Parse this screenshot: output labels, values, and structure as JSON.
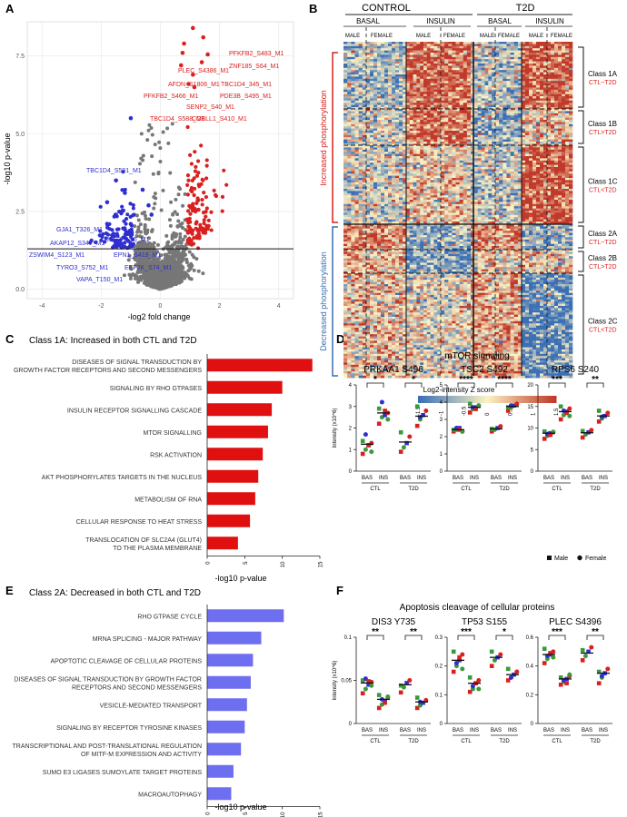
{
  "panels": {
    "a": "A",
    "b": "B",
    "c": "C",
    "d": "D",
    "e": "E",
    "f": "F"
  },
  "colors": {
    "red": "#d9201f",
    "blue": "#2f2fd0",
    "grey": "#777777",
    "bar_red": "#e01010",
    "bar_blue": "#6e6ef0",
    "green": "#3a9a3a",
    "heat_low": "#3b6fb6",
    "heat_mid": "#fbf3c4",
    "heat_high": "#c0392b"
  },
  "chart_data": [
    {
      "id": "A",
      "type": "scatter",
      "title": "",
      "xlabel": "-log2 fold change",
      "ylabel": "-log10 p-value",
      "xlim": [
        -4.5,
        4.5
      ],
      "ylim": [
        -0.3,
        8.6
      ],
      "xticks": [
        "-4",
        "-2",
        "0",
        "2",
        "4"
      ],
      "yticks": [
        "0.0",
        "2.5",
        "5.0",
        "7.5"
      ],
      "threshold_y": 1.3,
      "labels_red": [
        {
          "text": "PFKFB2_S483_M1",
          "x": 1.1,
          "y": 8.4
        },
        {
          "text": "PLEC_S4386_M1",
          "x": 0.8,
          "y": 7.9
        },
        {
          "text": "ZNF185_S64_M1",
          "x": 1.45,
          "y": 8.1
        },
        {
          "text": "AFDN_S1806_M1",
          "x": 0.75,
          "y": 7.6
        },
        {
          "text": "TBC1D4_345_M1",
          "x": 1.6,
          "y": 7.55
        },
        {
          "text": "PFKFB2_S466_M1",
          "x": 0.7,
          "y": 7.2
        },
        {
          "text": "PDE3B_S495_M1",
          "x": 1.4,
          "y": 7.3
        },
        {
          "text": "SENP2_S40_M1",
          "x": 1.1,
          "y": 6.9
        },
        {
          "text": "TBC1D4_S588_M1",
          "x": 0.95,
          "y": 6.6
        },
        {
          "text": "COBLL1_S410_M1",
          "x": 1.15,
          "y": 6.5
        }
      ],
      "labels_blue": [
        {
          "text": "TBC1D4_S591_M1",
          "x": -1.0,
          "y": 5.5
        },
        {
          "text": "GJA1_T326_M1",
          "x": -1.5,
          "y": 3.5
        },
        {
          "text": "AKAP12_S347_M1",
          "x": -1.2,
          "y": 3.1
        },
        {
          "text": "UBE2H_S5_M1",
          "x": -0.6,
          "y": 3.2
        },
        {
          "text": "ZSWIM4_S123_M1",
          "x": -1.8,
          "y": 2.8
        },
        {
          "text": "TYRO3_S752_M1",
          "x": -1.3,
          "y": 2.5
        },
        {
          "text": "EPN1_S419_M1",
          "x": -0.4,
          "y": 2.7
        },
        {
          "text": "EEF2K_S74_M1",
          "x": -0.3,
          "y": 2.4
        },
        {
          "text": "VAPA_T150_M1",
          "x": -1.0,
          "y": 2.1
        }
      ]
    },
    {
      "id": "B",
      "type": "heatmap",
      "top_groups": [
        "CONTROL",
        "T2D"
      ],
      "sub_groups": [
        "BASAL",
        "INSULIN",
        "BASAL",
        "INSULIN"
      ],
      "sexes": [
        "MALE",
        "FEMALE",
        "MALE",
        "FEMALE",
        "MALE",
        "FEMALE",
        "MALE",
        "FEMALE"
      ],
      "side_labels": [
        "Increased phosphorylation",
        "Decreased phosphorylation"
      ],
      "classes": [
        {
          "name": "Class 1A",
          "rel": "CTL~T2D"
        },
        {
          "name": "Class 1B",
          "rel": "CTL>T2D"
        },
        {
          "name": "Class 1C",
          "rel": "CTL<T2D"
        },
        {
          "name": "Class 2A",
          "rel": "CTL~T2D"
        },
        {
          "name": "Class 2B",
          "rel": "CTL>T2D"
        },
        {
          "name": "Class 2C",
          "rel": "CTL<T2D"
        }
      ],
      "colorbar_label": "Log2-intensity Z score",
      "colorbar_ticks": [
        "-1.5",
        "-1",
        "-0.5",
        "0",
        "0.5",
        "1",
        "1.5"
      ]
    },
    {
      "id": "C",
      "type": "bar",
      "title": "Class 1A: Increased in both CTL and T2D",
      "xlabel": "-log10 p-value",
      "xlim": [
        0,
        15
      ],
      "xticks": [
        "0",
        "5",
        "10",
        "15"
      ],
      "categories": [
        "DISEASES OF SIGNAL TRANSDUCTION BY|GROWTH FACTOR RECEPTORS AND SECOND MESSENGERS",
        "SIGNALING BY RHO GTPASES",
        "INSULIN RECEPTOR SIGNALLING CASCADE",
        "MTOR SIGNALLING",
        "RSK ACTIVATION",
        "AKT PHOSPHORYLATES TARGETS IN THE NUCLEUS",
        "METABOLISM OF RNA",
        "CELLULAR RESPONSE TO HEAT STRESS",
        "TRANSLOCATION OF SLC2A4 (GLUT4)|TO THE PLASMA MEMBRANE"
      ],
      "values": [
        14.0,
        10.0,
        8.6,
        8.1,
        7.4,
        6.8,
        6.4,
        5.7,
        4.1
      ]
    },
    {
      "id": "E",
      "type": "bar",
      "title": "Class 2A: Decreased in both CTL and T2D",
      "xlabel": "-log10 p-value",
      "xlim": [
        0,
        15
      ],
      "xticks": [
        "0",
        "5",
        "10",
        "15"
      ],
      "categories": [
        "RHO GTPASE CYCLE",
        "MRNA SPLICING - MAJOR PATHWAY",
        "APOPTOTIC CLEAVAGE OF CELLULAR PROTEINS",
        "DISEASES OF SIGNAL TRANSDUCTION BY GROWTH FACTOR|RECEPTORS AND SECOND MESSENGERS",
        "VESICLE-MEDIATED TRANSPORT",
        "SIGNALING BY RECEPTOR TYROSINE KINASES",
        "TRANSCRIPTIONAL AND POST-TRANSLATIONAL REGULATION|OF MITF-M EXPRESSION AND ACTIVITY",
        "SUMO E3 LIGASES SUMOYLATE TARGET PROTEINS",
        "MACROAUTOPHAGY"
      ],
      "values": [
        10.2,
        7.2,
        6.1,
        5.8,
        5.3,
        5.0,
        4.5,
        3.5,
        3.2
      ]
    },
    {
      "id": "D",
      "type": "scatter",
      "title": "mTOR signaling",
      "ylabel": "Intensity (x10^6)",
      "legend": [
        "Male",
        "Female"
      ],
      "subplots": [
        {
          "name": "PRKAA1 S496",
          "ylim": [
            0,
            4
          ],
          "yticks": [
            "0",
            "1",
            "2",
            "3",
            "4"
          ],
          "groups": [
            "BAS",
            "INS",
            "BAS",
            "INS"
          ],
          "cohorts": [
            "CTL",
            "T2D"
          ],
          "means": [
            1.25,
            2.7,
            1.35,
            2.55
          ],
          "sig": [
            "*",
            "*"
          ],
          "points": [
            [
              0.8,
              1.0,
              1.2,
              1.3,
              1.4,
              1.7,
              1.2,
              0.9
            ],
            [
              2.2,
              2.5,
              2.6,
              2.7,
              2.9,
              3.2,
              2.8,
              2.4
            ],
            [
              0.9,
              1.1,
              1.3,
              1.6,
              1.8
            ],
            [
              2.1,
              2.4,
              2.6,
              2.8,
              3.0,
              2.5
            ]
          ]
        },
        {
          "name": "TSC2 S492",
          "ylim": [
            0,
            5
          ],
          "yticks": [
            "0",
            "1",
            "2",
            "3",
            "4",
            "5"
          ],
          "groups": [
            "BAS",
            "INS",
            "BAS",
            "INS"
          ],
          "cohorts": [
            "CTL",
            "T2D"
          ],
          "means": [
            2.4,
            3.7,
            2.45,
            3.75
          ],
          "sig": [
            "****",
            "****"
          ],
          "points": [
            [
              2.3,
              2.4,
              2.5,
              2.3,
              2.4,
              2.5,
              2.4,
              2.3
            ],
            [
              3.4,
              3.6,
              3.7,
              3.8,
              3.9,
              3.7,
              3.6,
              3.8
            ],
            [
              2.3,
              2.4,
              2.5,
              2.6,
              2.45
            ],
            [
              3.5,
              3.7,
              3.8,
              3.9,
              3.7,
              3.8
            ]
          ]
        },
        {
          "name": "RPS6 S240",
          "ylim": [
            0,
            20
          ],
          "yticks": [
            "0",
            "5",
            "10",
            "15",
            "20"
          ],
          "groups": [
            "BAS",
            "INS",
            "BAS",
            "INS"
          ],
          "cohorts": [
            "CTL",
            "T2D"
          ],
          "means": [
            8.8,
            13.8,
            8.9,
            12.8
          ],
          "sig": [
            "***",
            "**"
          ],
          "points": [
            [
              7.5,
              8.2,
              8.8,
              9.0,
              9.2,
              8.6,
              8.4,
              9.1
            ],
            [
              12.0,
              13.0,
              13.8,
              14.5,
              15.0,
              14.0,
              13.5,
              12.8
            ],
            [
              7.8,
              8.5,
              9.0,
              9.5,
              9.3
            ],
            [
              11.5,
              12.2,
              12.8,
              13.5,
              14.0,
              12.6
            ]
          ]
        }
      ]
    },
    {
      "id": "F",
      "type": "scatter",
      "title": "Apoptosis cleavage of cellular proteins",
      "ylabel": "Intensity (x10^6)",
      "subplots": [
        {
          "name": "DIS3 Y735",
          "ylim": [
            0,
            0.1
          ],
          "yticks": [
            "0",
            "0.05",
            "0.1"
          ],
          "groups": [
            "BAS",
            "INS",
            "BAS",
            "INS"
          ],
          "cohorts": [
            "CTL",
            "T2D"
          ],
          "means": [
            0.047,
            0.028,
            0.045,
            0.025
          ],
          "sig": [
            "**",
            "**"
          ],
          "points": [
            [
              0.035,
              0.04,
              0.045,
              0.048,
              0.05,
              0.052,
              0.049,
              0.044
            ],
            [
              0.018,
              0.022,
              0.026,
              0.03,
              0.033,
              0.028,
              0.024,
              0.031
            ],
            [
              0.036,
              0.042,
              0.047,
              0.05,
              0.044
            ],
            [
              0.018,
              0.021,
              0.024,
              0.027,
              0.03,
              0.025
            ]
          ]
        },
        {
          "name": "TP53 S155",
          "ylim": [
            0,
            0.3
          ],
          "yticks": [
            "0",
            "0.1",
            "0.2",
            "0.3"
          ],
          "groups": [
            "BAS",
            "INS",
            "BAS",
            "INS"
          ],
          "cohorts": [
            "CTL",
            "T2D"
          ],
          "means": [
            0.22,
            0.14,
            0.23,
            0.17
          ],
          "sig": [
            "***",
            "*"
          ],
          "points": [
            [
              0.18,
              0.2,
              0.22,
              0.24,
              0.25,
              0.21,
              0.23,
              0.19
            ],
            [
              0.11,
              0.12,
              0.14,
              0.15,
              0.16,
              0.13,
              0.14,
              0.12
            ],
            [
              0.2,
              0.22,
              0.23,
              0.24,
              0.25
            ],
            [
              0.15,
              0.16,
              0.17,
              0.18,
              0.19,
              0.16
            ]
          ]
        },
        {
          "name": "PLEC S4396",
          "ylim": [
            0,
            0.6
          ],
          "yticks": [
            "0",
            "0.2",
            "0.4",
            "0.6"
          ],
          "groups": [
            "BAS",
            "INS",
            "BAS",
            "INS"
          ],
          "cohorts": [
            "CTL",
            "T2D"
          ],
          "means": [
            0.48,
            0.31,
            0.49,
            0.35
          ],
          "sig": [
            "***",
            "**"
          ],
          "points": [
            [
              0.42,
              0.45,
              0.48,
              0.5,
              0.52,
              0.47,
              0.49,
              0.46
            ],
            [
              0.27,
              0.29,
              0.31,
              0.33,
              0.32,
              0.3,
              0.28,
              0.34
            ],
            [
              0.44,
              0.47,
              0.5,
              0.53,
              0.51
            ],
            [
              0.28,
              0.32,
              0.35,
              0.38,
              0.36,
              0.33
            ]
          ]
        }
      ]
    }
  ]
}
